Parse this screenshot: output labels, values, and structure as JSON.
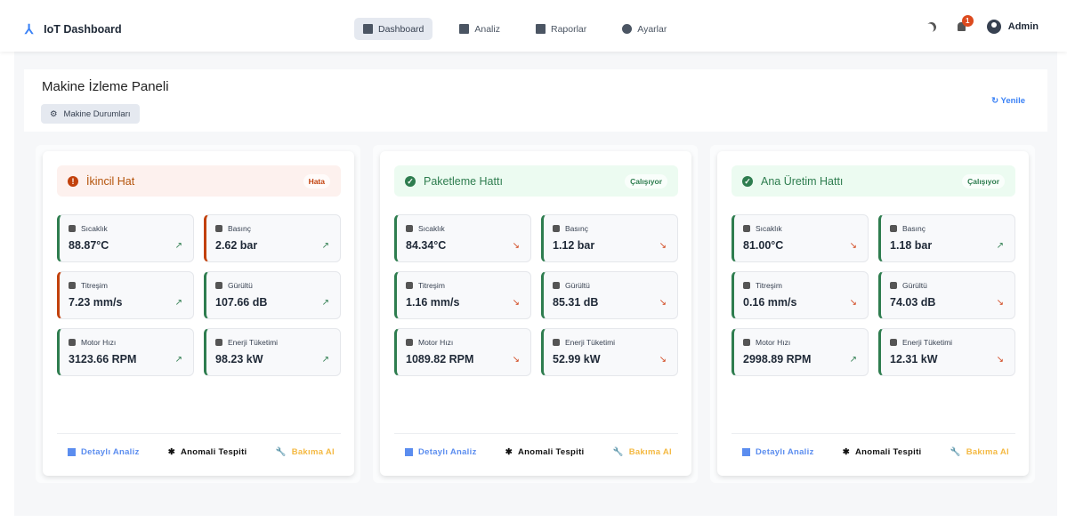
{
  "nav": {
    "brand": "IoT Dashboard",
    "links": [
      {
        "label": "Dashboard",
        "icon": "dashboard-icon",
        "active": true
      },
      {
        "label": "Analiz",
        "icon": "chart-icon"
      },
      {
        "label": "Raporlar",
        "icon": "bar-chart-icon"
      },
      {
        "label": "Ayarlar",
        "icon": "gear-icon"
      }
    ],
    "notif_count": "1",
    "user": "Admin"
  },
  "header": {
    "title": "Makine İzleme Paneli",
    "chip": "Makine Durumları",
    "refresh": "Yenile"
  },
  "colors": {
    "ok": "#2e7d4f",
    "error": "#c2410c",
    "up": "#2e7d4f",
    "down": "#d1451b",
    "analysis": "#5b8def",
    "maint": "#f4b942"
  },
  "machines": [
    {
      "name": "İkincil Hat",
      "status": "Hata",
      "state": "error",
      "metrics": [
        {
          "label": "Sıcaklık",
          "icon": "thermometer-icon",
          "value": "88.87°C",
          "trend": "up",
          "border": "ok"
        },
        {
          "label": "Basınç",
          "icon": "gauge-icon",
          "value": "2.62 bar",
          "trend": "up",
          "border": "error"
        },
        {
          "label": "Titreşim",
          "icon": "vibration-icon",
          "value": "7.23 mm/s",
          "trend": "up",
          "border": "error"
        },
        {
          "label": "Gürültü",
          "icon": "speaker-icon",
          "value": "107.66 dB",
          "trend": "up",
          "border": "ok"
        },
        {
          "label": "Motor Hızı",
          "icon": "gear-icon",
          "value": "3123.66 RPM",
          "trend": "up",
          "border": "ok"
        },
        {
          "label": "Enerji Tüketimi",
          "icon": "bolt-icon",
          "value": "98.23 kW",
          "trend": "up",
          "border": "ok"
        }
      ]
    },
    {
      "name": "Paketleme Hattı",
      "status": "Çalışıyor",
      "state": "ok",
      "metrics": [
        {
          "label": "Sıcaklık",
          "icon": "thermometer-icon",
          "value": "84.34°C",
          "trend": "down",
          "border": "ok"
        },
        {
          "label": "Basınç",
          "icon": "gauge-icon",
          "value": "1.12 bar",
          "trend": "down",
          "border": "ok"
        },
        {
          "label": "Titreşim",
          "icon": "vibration-icon",
          "value": "1.16 mm/s",
          "trend": "down",
          "border": "ok"
        },
        {
          "label": "Gürültü",
          "icon": "speaker-icon",
          "value": "85.31 dB",
          "trend": "down",
          "border": "ok"
        },
        {
          "label": "Motor Hızı",
          "icon": "gear-icon",
          "value": "1089.82 RPM",
          "trend": "down",
          "border": "ok"
        },
        {
          "label": "Enerji Tüketimi",
          "icon": "bolt-icon",
          "value": "52.99 kW",
          "trend": "down",
          "border": "ok"
        }
      ]
    },
    {
      "name": "Ana Üretim Hattı",
      "status": "Çalışıyor",
      "state": "ok",
      "metrics": [
        {
          "label": "Sıcaklık",
          "icon": "thermometer-icon",
          "value": "81.00°C",
          "trend": "down",
          "border": "ok"
        },
        {
          "label": "Basınç",
          "icon": "gauge-icon",
          "value": "1.18 bar",
          "trend": "up",
          "border": "ok"
        },
        {
          "label": "Titreşim",
          "icon": "vibration-icon",
          "value": "0.16 mm/s",
          "trend": "down",
          "border": "ok"
        },
        {
          "label": "Gürültü",
          "icon": "speaker-icon",
          "value": "74.03 dB",
          "trend": "down",
          "border": "ok"
        },
        {
          "label": "Motor Hızı",
          "icon": "gear-icon",
          "value": "2998.89 RPM",
          "trend": "up",
          "border": "ok"
        },
        {
          "label": "Enerji Tüketimi",
          "icon": "bolt-icon",
          "value": "12.31 kW",
          "trend": "down",
          "border": "ok"
        }
      ]
    }
  ],
  "actions": {
    "analysis": "Detaylı Analiz",
    "anomaly": "Anomali Tespiti",
    "maintenance": "Bakıma Al"
  }
}
